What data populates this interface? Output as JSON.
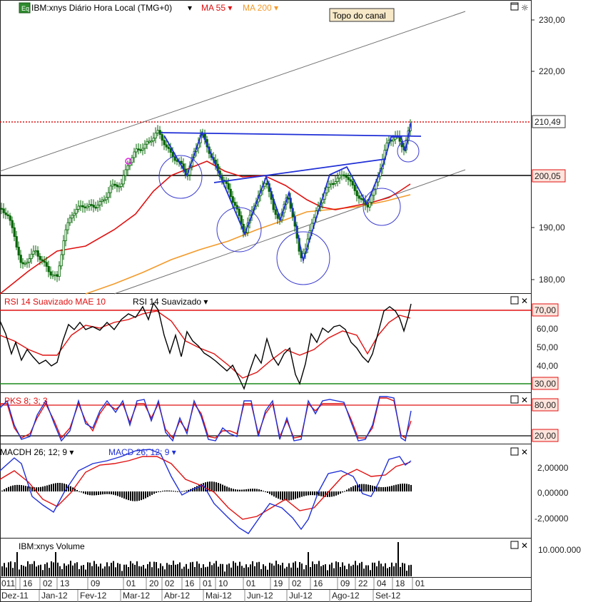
{
  "main_panel": {
    "symbol": "IBM:xnys",
    "period": "Diário",
    "timezone": "Hora Local (TMG+0)",
    "ma55_label": "MA 55",
    "ma200_label": "MA 200",
    "annotation": "Topo do canal",
    "price_ticks": [
      "230,00",
      "220,00",
      "190,00",
      "180,00"
    ],
    "last_price_label": "210,49",
    "level_label": "200,05",
    "colors": {
      "price": "#006400",
      "ma55": "#e01010",
      "ma200": "#f39a2a",
      "trendline": "#1f2fd6",
      "channel": "#606060",
      "circle": "#3a3ad0"
    }
  },
  "rsi_panel": {
    "title_mae": "RSI 14 Suavizado MAE 10",
    "title_rsi": "RSI 14 Suavizado",
    "ticks": [
      "60,00",
      "50,00",
      "40,00"
    ],
    "upper_label": "70,00",
    "lower_label": "30,00"
  },
  "pks_panel": {
    "title": "PKS 8; 3; 3",
    "upper_label": "80,00",
    "lower_label": "20,00"
  },
  "macd_panel": {
    "title_hist": "MACDH 26; 12; 9",
    "title_macd": "MACD 26; 12; 9",
    "ticks": [
      "2,00000",
      "0,00000",
      "-2,00000"
    ]
  },
  "volume_panel": {
    "title": "IBM:xnys Volume",
    "tick": "10.000.000"
  },
  "xaxis": {
    "days": [
      "011",
      "16",
      "02",
      "13",
      "09",
      "01",
      "20",
      "02",
      "16",
      "01",
      "10",
      "01",
      "19",
      "02",
      "16",
      "09",
      "22",
      "04",
      "18",
      "01"
    ],
    "months": [
      "Dez-11",
      "Jan-12",
      "Fev-12",
      "Mar-12",
      "Abr-12",
      "Mai-12",
      "Jun-12",
      "Jul-12",
      "Ago-12",
      "Set-12"
    ]
  },
  "chart_data": {
    "type": "line",
    "title": "IBM:xnys Diário",
    "x": [
      "Dez-11",
      "Jan-12",
      "Fev-12",
      "Mar-12",
      "Abr-12",
      "Mai-12",
      "Jun-12",
      "Jul-12",
      "Ago-12",
      "Set-12"
    ],
    "series": [
      {
        "name": "IBM:xnys",
        "values": [
          186,
          183,
          192,
          206,
          199,
          205,
          190,
          184,
          197,
          207
        ]
      },
      {
        "name": "MA 55",
        "values": [
          187,
          187,
          189,
          197,
          202,
          201,
          196,
          192,
          194,
          199
        ]
      },
      {
        "name": "MA 200",
        "values": [
          178,
          180,
          183,
          186,
          189,
          191,
          192,
          193,
          194,
          196
        ]
      }
    ],
    "annotations": [
      "Topo do canal"
    ],
    "ylim": [
      178,
      232
    ],
    "levels": [
      210.49,
      200.05
    ],
    "rsi_levels": [
      70,
      30
    ],
    "pks_levels": [
      80,
      20
    ]
  }
}
